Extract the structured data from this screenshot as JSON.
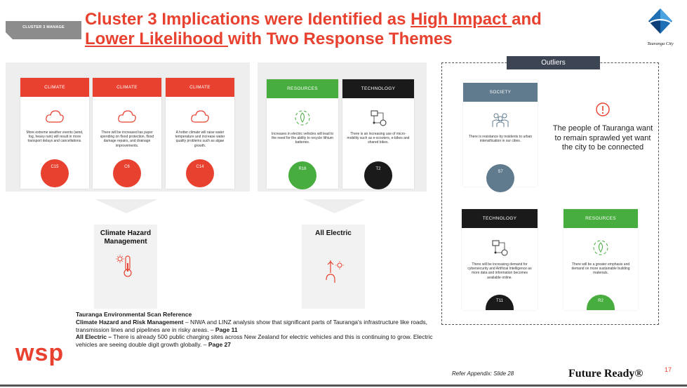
{
  "header": {
    "tag": "CLUSTER 3 MANAGE",
    "title_part1": "Cluster 3 Implications were Identified as ",
    "title_high": "High Impact ",
    "title_part2": "and",
    "title_lower": "Lower Likelihood ",
    "title_part3": "with Two Response Themes",
    "logo_text": "Tauranga City"
  },
  "group1": {
    "cards": [
      {
        "header": "CLIMATE",
        "icon": "cloud-icon",
        "text": "More extreme weather events (wind, fog, heavy rain) will result in more transport delays and cancellations.",
        "code": "C15"
      },
      {
        "header": "CLIMATE",
        "icon": "cloud-icon",
        "text": "There will be increased tax payer spending on flood protection, flood damage repairs, and drainage improvements.",
        "code": "C6"
      },
      {
        "header": "CLIMATE",
        "icon": "cloud-icon",
        "text": "A hotter climate will raise water temperature and increase water quality problems such as algae growth.",
        "code": "C14"
      }
    ],
    "theme": "Climate Hazard Management",
    "theme_icon": "thermometer-sun-icon"
  },
  "group2": {
    "cards": [
      {
        "header": "RESOURCES",
        "icon": "recycle-leaf-icon",
        "text": "Increases in electric vehicles will lead to the need for the ability to recycle lithium batteries.",
        "code": "R16"
      },
      {
        "header": "TECHNOLOGY",
        "icon": "network-icon",
        "text": "There is an increasing use of micro-mobility such as e-scooters, e-bikes and shared bikes.",
        "code": "T2"
      }
    ],
    "theme": "All Electric",
    "theme_icon": "electric-plug-icon"
  },
  "outliers": {
    "tab": "Outliers",
    "cards": [
      {
        "header": "SOCIETY",
        "icon": "people-icon",
        "text": "There is resistance by residents to urban intensification in our cities.",
        "code": "S7"
      },
      {
        "header": "TECHNOLOGY",
        "icon": "network-icon",
        "text": "There will be increasing demand for cybersecurity and Artificial Intelligence as more data and information becomes available online.",
        "code": "T11"
      },
      {
        "header": "RESOURCES",
        "icon": "recycle-leaf-icon",
        "text": "There will be a greater emphasis and demand on more sustainable building materials.",
        "code": "R2"
      }
    ],
    "note": "The people of Tauranga want to remain sprawled yet want the city to be connected"
  },
  "reference": {
    "heading": "Tauranga Environmental Scan Reference",
    "item1_bold": "Climate Hazard and Risk Management",
    "item1_text": " – NIWA and LINZ analysis show that significant parts of Tauranga's infrastructure like roads, transmission lines and pipelines are in risky areas. – ",
    "item1_page": "Page 11",
    "item2_bold": "All Electric –",
    "item2_text": " There is already 500 public charging sites across New Zealand for electric vehicles and this is continuing to grow. Electric vehicles are seeing double digit growth globally. – ",
    "item2_page": "Page 27"
  },
  "footer": {
    "wsp": "wsp",
    "appendix": "Refer Appendix: Slide 28",
    "future_ready": "Future Ready®",
    "page_number": "17"
  },
  "colors": {
    "red": "#e8412f",
    "green": "#46ad3e",
    "black": "#1a1a1a",
    "slate": "#607a8e",
    "tab": "#3d4554"
  }
}
